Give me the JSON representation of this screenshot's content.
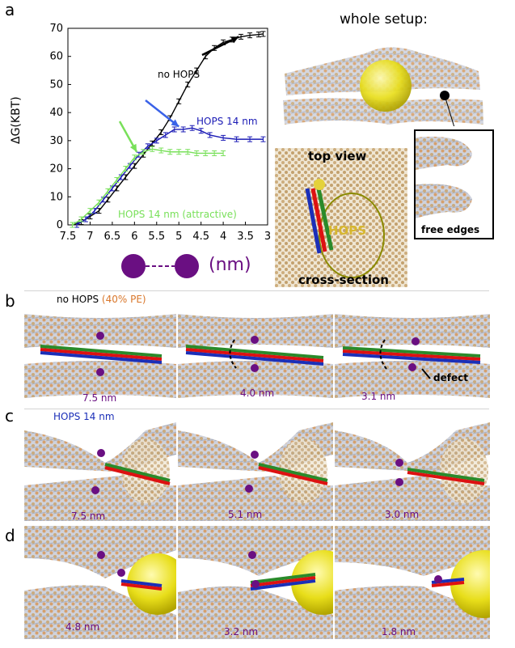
{
  "panel_labels": {
    "a": "a",
    "b": "b",
    "c": "c",
    "d": "d"
  },
  "panel_a": {
    "legend": {
      "whole_setup": "whole setup:",
      "top_view": "top view",
      "hops": "HOPS",
      "cross_section": "cross-section",
      "free_edges": "free edges"
    },
    "distance_unit": "(nm)"
  },
  "chart_data": {
    "type": "line",
    "ylabel": "ΔG(KBT)",
    "xlabel": "(nm)",
    "xlim": [
      7.5,
      3
    ],
    "ylim": [
      0,
      70
    ],
    "x_ticks": [
      "7.5",
      "7",
      "6.5",
      "6",
      "5.5",
      "5",
      "4.5",
      "4",
      "3.5",
      "3"
    ],
    "y_ticks": [
      "0",
      "10",
      "20",
      "30",
      "40",
      "50",
      "60",
      "70"
    ],
    "series": [
      {
        "name": "no HOPS",
        "color": "#000000",
        "x": [
          7.4,
          7.2,
          7.0,
          6.8,
          6.6,
          6.4,
          6.2,
          6.0,
          5.8,
          5.6,
          5.4,
          5.2,
          5.0,
          4.8,
          4.6,
          4.4,
          4.2,
          4.0,
          3.8,
          3.6,
          3.4,
          3.2,
          3.1
        ],
        "y": [
          0,
          1,
          3,
          5,
          9,
          13,
          17,
          21,
          25,
          29,
          33,
          38,
          44,
          50,
          55,
          60,
          63,
          65,
          66,
          67,
          67.5,
          67.8,
          68
        ]
      },
      {
        "name": "HOPS 14 nm",
        "color": "#1a1ab5",
        "x": [
          7.3,
          7.1,
          6.9,
          6.7,
          6.5,
          6.3,
          6.1,
          5.9,
          5.7,
          5.5,
          5.3,
          5.1,
          4.9,
          4.7,
          4.5,
          4.3,
          4.0,
          3.7,
          3.4,
          3.1
        ],
        "y": [
          0,
          2,
          5,
          9,
          13,
          17,
          21,
          25,
          28,
          30,
          32,
          34,
          34,
          34.5,
          33.5,
          32,
          31,
          30.5,
          30.5,
          30.5
        ]
      },
      {
        "name": "HOPS 14 nm (attractive)",
        "color": "#79e05a",
        "x": [
          7.4,
          7.2,
          7.0,
          6.8,
          6.6,
          6.4,
          6.2,
          6.0,
          5.8,
          5.6,
          5.4,
          5.2,
          5.0,
          4.8,
          4.6,
          4.4,
          4.2,
          4.0
        ],
        "y": [
          0,
          2,
          5,
          8,
          12,
          16,
          20,
          24,
          26,
          27,
          26.5,
          26,
          26,
          26,
          25.5,
          25.5,
          25.5,
          25.5
        ]
      }
    ],
    "arrow_colors": [
      "#000000",
      "#3a62e8",
      "#79e05a"
    ]
  },
  "panel_b": {
    "title": "no HOPS",
    "title_extra": "(40% PE)",
    "snapshots": [
      "7.5 nm",
      "4.0 nm",
      "3.1 nm"
    ],
    "defect": "defect"
  },
  "panel_c": {
    "title": "HOPS 14 nm",
    "snapshots": [
      "7.5 nm",
      "5.1 nm",
      "3.0 nm"
    ]
  },
  "panel_d": {
    "snapshots": [
      "4.8 nm",
      "3.2 nm",
      "1.8 nm"
    ]
  },
  "colors": {
    "purple": "#6a0f82",
    "orange": "#d9772b",
    "blue": "#1b2fb8",
    "membrane": "#c8ccd8",
    "headgroup": "#c9a06a"
  }
}
